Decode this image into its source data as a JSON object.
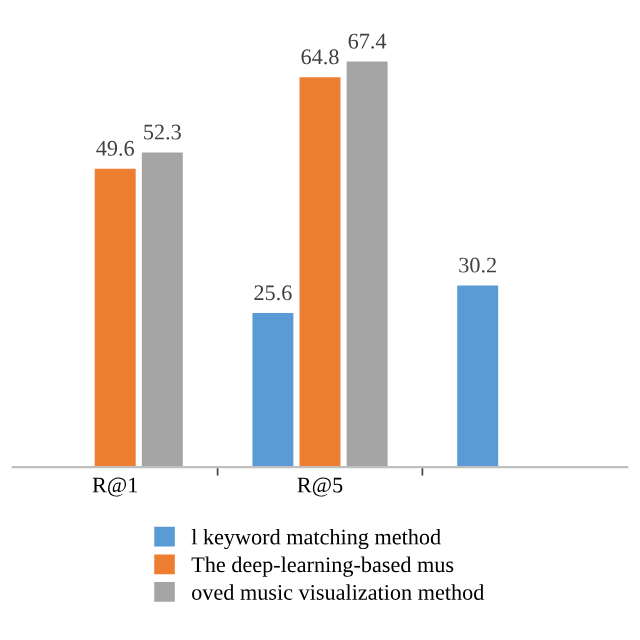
{
  "chart_data": {
    "type": "bar",
    "categories": [
      "R@1",
      "R@5",
      null
    ],
    "series": [
      {
        "name": "l keyword matching method",
        "color": "#5b9bd5",
        "values": [
          null,
          25.6,
          30.2
        ]
      },
      {
        "name": "The deep-learning-based mus",
        "color": "#ed7d31",
        "values": [
          49.6,
          64.8,
          null
        ]
      },
      {
        "name": "oved music visualization method",
        "color": "#a5a5a5",
        "values": [
          52.3,
          67.4,
          null
        ]
      }
    ],
    "data_labels": true,
    "legend": "bottom",
    "grid": false
  }
}
